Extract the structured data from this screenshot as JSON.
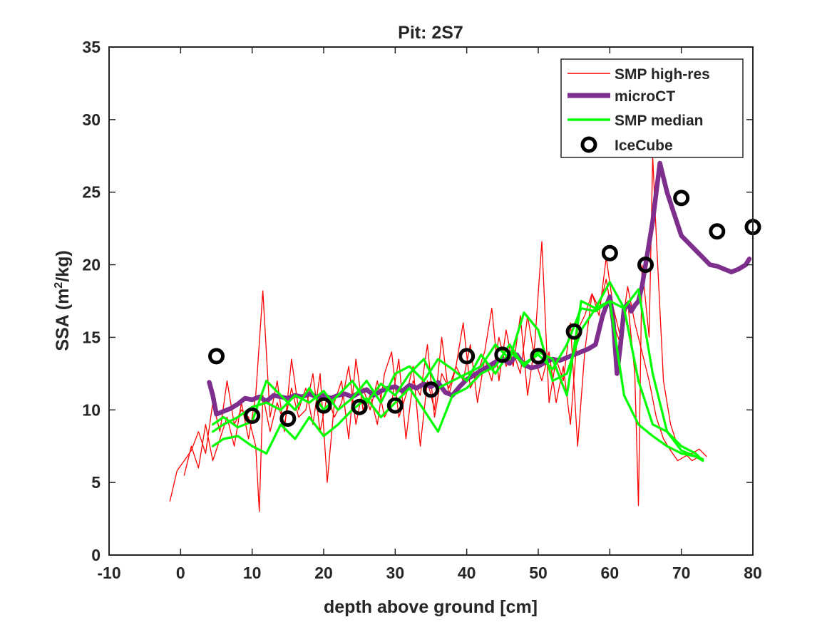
{
  "chart_data": {
    "type": "line",
    "title": "Pit: 2S7",
    "xlabel": "depth above ground [cm]",
    "ylabel": "SSA (m²/kg)",
    "ylabel_parts": {
      "prefix": "SSA (m",
      "sup": "2",
      "suffix": "/kg)"
    },
    "xlim": [
      -10,
      80
    ],
    "ylim": [
      0,
      35
    ],
    "xticks": [
      -10,
      0,
      10,
      20,
      30,
      40,
      50,
      60,
      70,
      80
    ],
    "yticks": [
      0,
      5,
      10,
      15,
      20,
      25,
      30,
      35
    ],
    "grid": false,
    "legend_position": "top-right",
    "series": [
      {
        "name": "SMP high-res",
        "style": "thin-line",
        "color": "#ff0000",
        "traces": [
          {
            "x": [
              -1.5,
              -0.5,
              0.5,
              1.5,
              2.5,
              3.5,
              4.5,
              5.5,
              6.5,
              7.5,
              8.5,
              9.5,
              10.5,
              11.0,
              11.5,
              12.5,
              13.5,
              14.5,
              15.5,
              16.5,
              17.5,
              18.5,
              19.5,
              20.5,
              21.5,
              22.5,
              23.5,
              24.5,
              25.5,
              26.5,
              27.5,
              28.5,
              29.5,
              30.5,
              31.5,
              32.5,
              33.5,
              34.5,
              35.5,
              36.5,
              37.5,
              38.5,
              39.5,
              40.5,
              41.5,
              42.5,
              43.5,
              44.5,
              45.5,
              46.5,
              47.5,
              48.5,
              49.5,
              50.5,
              51.5,
              52.5,
              53.5,
              54.5,
              55.5,
              56.5,
              57.5,
              58.5,
              59.5,
              60.5,
              61.5,
              62.5,
              63.5,
              64.0,
              64.5,
              65.5,
              66.0,
              66.5,
              67.5,
              68.5,
              69.5,
              70.5,
              71.5,
              72.5
            ],
            "y": [
              3.7,
              5.8,
              6.5,
              7.2,
              8.5,
              7.0,
              10.5,
              8.5,
              12.0,
              9.0,
              10.0,
              9.5,
              7.5,
              3.0,
              11.0,
              8.5,
              10.5,
              9.0,
              11.5,
              9.5,
              10.0,
              12.5,
              8.5,
              11.0,
              9.5,
              10.5,
              13.0,
              9.0,
              11.5,
              10.0,
              12.0,
              9.5,
              10.5,
              13.5,
              8.0,
              12.0,
              11.0,
              14.5,
              9.5,
              12.5,
              11.5,
              13.0,
              12.0,
              14.5,
              10.5,
              13.5,
              12.0,
              15.0,
              13.0,
              14.0,
              12.5,
              16.5,
              13.5,
              12.0,
              14.0,
              10.5,
              13.0,
              9.0,
              15.5,
              16.5,
              18.0,
              17.0,
              19.0,
              16.0,
              14.5,
              17.5,
              12.5,
              3.4,
              20.0,
              15.0,
              27.5,
              22.0,
              12.0,
              9.0,
              7.5,
              7.0,
              6.5,
              6.8
            ]
          },
          {
            "x": [
              0.5,
              1.5,
              2.5,
              3.5,
              4.5,
              5.5,
              6.5,
              7.5,
              8.5,
              9.5,
              10.5,
              11.5,
              12.5,
              13.5,
              14.5,
              15.5,
              16.5,
              17.5,
              18.5,
              19.5,
              20.5,
              21.5,
              22.5,
              23.5,
              24.5,
              25.5,
              26.5,
              27.5,
              28.5,
              29.5,
              30.5,
              31.5,
              32.5,
              33.5,
              34.5,
              35.5,
              36.5,
              37.5,
              38.5,
              39.5,
              40.5,
              41.5,
              42.5,
              43.5,
              44.5,
              45.5,
              46.5,
              47.5,
              48.5,
              49.5,
              50.5,
              51.5,
              52.5,
              53.5,
              54.5,
              55.5,
              56.5,
              57.5,
              58.5,
              59.5,
              60.5,
              61.5,
              62.5,
              63.5,
              64.5,
              65.5,
              66.5,
              67.5,
              68.5,
              69.5,
              70.5,
              71.5,
              72.5,
              73.5
            ],
            "y": [
              5.5,
              7.5,
              6.0,
              9.0,
              6.5,
              8.0,
              9.5,
              7.5,
              10.5,
              8.0,
              11.0,
              18.2,
              9.5,
              12.0,
              8.5,
              13.5,
              10.0,
              11.5,
              9.0,
              12.5,
              5.0,
              10.5,
              12.0,
              8.0,
              13.5,
              10.0,
              11.0,
              9.0,
              12.5,
              14.0,
              9.5,
              11.0,
              13.0,
              7.5,
              12.0,
              10.0,
              15.0,
              11.0,
              13.0,
              16.0,
              11.5,
              12.5,
              14.0,
              17.0,
              12.0,
              15.5,
              13.0,
              16.5,
              11.0,
              14.5,
              21.6,
              10.5,
              13.5,
              12.0,
              16.0,
              7.5,
              14.0,
              18.0,
              16.5,
              20.5,
              17.0,
              15.0,
              18.5,
              16.0,
              14.0,
              12.0,
              9.5,
              8.0,
              7.2,
              6.5,
              6.8,
              7.0,
              7.3,
              6.8
            ]
          }
        ]
      },
      {
        "name": "microCT",
        "style": "thick-line",
        "color": "#7e2f8e",
        "x": [
          4.0,
          4.5,
          5.0,
          6.0,
          7.0,
          8.0,
          9.0,
          10.0,
          11.0,
          12.0,
          13.0,
          14.0,
          15.0,
          16.0,
          17.0,
          18.0,
          19.0,
          20.0,
          21.0,
          22.0,
          23.0,
          24.0,
          25.0,
          26.0,
          27.0,
          28.0,
          29.0,
          30.0,
          31.0,
          32.0,
          33.0,
          34.0,
          35.0,
          36.0,
          37.0,
          38.0,
          39.0,
          40.0,
          41.0,
          42.0,
          43.0,
          44.0,
          45.0,
          46.0,
          47.0,
          48.0,
          49.0,
          50.0,
          51.0,
          52.0,
          53.0,
          54.0,
          55.0,
          56.0,
          57.0,
          58.0,
          59.0,
          60.0,
          60.5,
          61.0,
          61.5,
          62.0,
          62.5,
          63.0,
          63.5,
          64.0,
          64.5,
          65.0,
          66.0,
          67.0,
          68.0,
          69.0,
          70.0,
          71.0,
          72.0,
          73.0,
          74.0,
          75.0,
          76.0,
          77.0,
          78.0,
          79.0,
          79.5
        ],
        "y": [
          11.9,
          11.0,
          9.7,
          9.9,
          10.1,
          10.4,
          10.8,
          10.7,
          10.9,
          10.6,
          11.0,
          10.9,
          10.8,
          11.0,
          10.9,
          11.1,
          10.9,
          11.0,
          10.8,
          11.0,
          11.1,
          10.9,
          11.2,
          11.4,
          11.0,
          11.3,
          11.5,
          11.6,
          11.3,
          11.7,
          11.5,
          11.8,
          11.6,
          11.9,
          11.2,
          11.0,
          11.6,
          12.1,
          12.4,
          12.7,
          13.0,
          13.3,
          13.5,
          13.2,
          13.8,
          13.1,
          12.9,
          13.0,
          13.3,
          13.5,
          13.4,
          13.6,
          13.8,
          14.0,
          14.2,
          14.5,
          16.5,
          17.8,
          16.0,
          12.5,
          14.5,
          17.0,
          17.3,
          16.8,
          17.2,
          17.5,
          18.5,
          20.0,
          23.0,
          27.0,
          25.0,
          23.5,
          22.0,
          21.5,
          21.0,
          20.5,
          20.0,
          19.9,
          19.7,
          19.5,
          19.7,
          20.0,
          20.4
        ]
      },
      {
        "name": "SMP median",
        "style": "medium-line",
        "color": "#00ff00",
        "traces": [
          {
            "x": [
              4.5,
              6,
              8,
              10,
              12,
              14,
              16,
              18,
              20,
              22,
              24,
              26,
              28,
              30,
              32,
              34,
              36,
              38,
              40,
              42,
              44,
              46,
              48,
              50,
              52,
              54,
              56,
              58,
              60,
              62,
              64,
              66,
              68,
              70,
              72,
              73
            ],
            "y": [
              9.0,
              9.5,
              8.8,
              9.2,
              12.0,
              11.0,
              10.0,
              11.5,
              10.0,
              11.0,
              12.0,
              10.5,
              11.8,
              11.0,
              12.5,
              13.5,
              11.5,
              12.0,
              12.5,
              13.0,
              14.5,
              13.5,
              16.7,
              15.5,
              12.0,
              12.5,
              15.5,
              17.0,
              18.8,
              17.0,
              12.0,
              9.0,
              8.5,
              7.5,
              7.0,
              6.5
            ]
          },
          {
            "x": [
              4.5,
              6,
              8,
              10,
              12,
              14,
              16,
              18,
              20,
              22,
              24,
              26,
              28,
              30,
              32,
              34,
              36,
              38,
              40,
              42,
              44,
              46,
              48,
              50,
              52,
              54,
              56,
              58,
              60,
              62,
              64,
              66,
              68,
              70,
              72,
              73
            ],
            "y": [
              7.5,
              8.0,
              8.2,
              7.5,
              7.0,
              9.0,
              8.0,
              9.5,
              8.2,
              9.0,
              10.0,
              10.8,
              9.5,
              10.5,
              11.5,
              10.0,
              8.5,
              11.0,
              11.5,
              12.5,
              13.0,
              14.5,
              13.0,
              14.0,
              13.5,
              11.0,
              17.5,
              17.0,
              17.5,
              11.0,
              9.0,
              8.2,
              7.5,
              7.0,
              6.8,
              6.6
            ]
          },
          {
            "x": [
              4.5,
              6,
              8,
              10,
              12,
              14,
              16,
              18,
              20,
              22,
              24,
              26,
              28,
              30,
              32,
              34,
              36,
              38,
              40,
              42,
              44,
              46,
              48,
              50,
              52,
              54,
              56,
              58,
              60,
              62,
              64,
              66,
              68,
              70,
              72,
              73
            ],
            "y": [
              8.5,
              9.0,
              9.5,
              10.2,
              10.5,
              10.0,
              11.0,
              10.5,
              11.3,
              10.0,
              10.8,
              12.0,
              10.5,
              12.5,
              13.0,
              12.0,
              13.5,
              12.8,
              12.0,
              13.8,
              12.5,
              14.0,
              13.2,
              13.8,
              12.8,
              14.5,
              17.0,
              16.8,
              17.5,
              17.0,
              18.3,
              12.5,
              8.5,
              7.2,
              6.8,
              6.5
            ]
          }
        ]
      },
      {
        "name": "IceCube",
        "style": "markers",
        "color": "#000000",
        "x": [
          5,
          10,
          15,
          20,
          25,
          30,
          35,
          40,
          45,
          50,
          55,
          60,
          65,
          70,
          75,
          80
        ],
        "y": [
          13.7,
          9.6,
          9.4,
          10.3,
          10.2,
          10.3,
          11.4,
          13.7,
          13.8,
          13.7,
          15.4,
          20.8,
          20.0,
          24.6,
          22.3,
          22.6
        ]
      }
    ]
  }
}
